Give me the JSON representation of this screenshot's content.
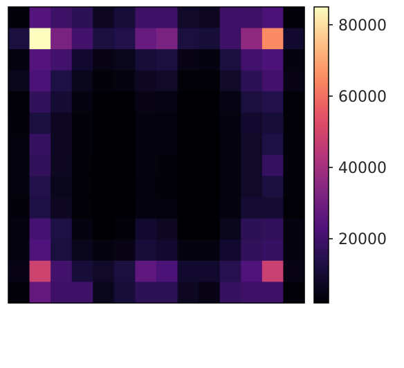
{
  "chart_data": {
    "type": "heatmap",
    "title": "",
    "xlabel": "",
    "ylabel": "",
    "colormap": "magma",
    "rows": 14,
    "cols": 14,
    "values": [
      [
        3000,
        24000,
        19000,
        16000,
        7000,
        11000,
        19000,
        19000,
        8000,
        7000,
        19000,
        19000,
        22000,
        3000
      ],
      [
        12000,
        85000,
        32000,
        20000,
        12000,
        14000,
        28000,
        32000,
        12000,
        11000,
        19000,
        36000,
        65000,
        9000
      ],
      [
        4000,
        24000,
        20000,
        9000,
        5000,
        6000,
        11000,
        12000,
        5000,
        4000,
        12000,
        20000,
        22000,
        4000
      ],
      [
        6000,
        22000,
        13000,
        6000,
        3000,
        4000,
        7000,
        8000,
        2500,
        2500,
        8000,
        16000,
        20000,
        5000
      ],
      [
        2500,
        17000,
        10000,
        4000,
        2000,
        2000,
        5000,
        4500,
        2000,
        2000,
        4500,
        12000,
        14000,
        2500
      ],
      [
        3000,
        12000,
        7000,
        3000,
        1500,
        1500,
        4000,
        3500,
        1500,
        1500,
        4000,
        9000,
        11000,
        2500
      ],
      [
        3500,
        18000,
        7000,
        3000,
        1500,
        2000,
        4000,
        3500,
        1500,
        1500,
        3500,
        8000,
        13000,
        3000
      ],
      [
        3500,
        17000,
        7000,
        2500,
        1500,
        1500,
        4000,
        3000,
        1500,
        1500,
        3500,
        8000,
        18000,
        3000
      ],
      [
        3500,
        14000,
        6000,
        2500,
        1500,
        1500,
        3500,
        3000,
        1500,
        1500,
        3500,
        8000,
        12000,
        3000
      ],
      [
        3000,
        13000,
        7000,
        2500,
        1500,
        1500,
        4000,
        3500,
        1500,
        1500,
        4000,
        10000,
        10000,
        2500
      ],
      [
        4000,
        21000,
        13000,
        4000,
        2000,
        3000,
        9000,
        7000,
        2000,
        2000,
        6000,
        16000,
        17000,
        4000
      ],
      [
        4000,
        23000,
        12000,
        6000,
        4000,
        5000,
        11000,
        9000,
        4000,
        4000,
        9000,
        17000,
        18000,
        4000
      ],
      [
        5000,
        49000,
        20000,
        11000,
        8000,
        12000,
        26000,
        22000,
        9000,
        9000,
        15000,
        23000,
        48000,
        5000
      ],
      [
        2500,
        27000,
        19000,
        19000,
        6000,
        11000,
        16000,
        16000,
        7000,
        5000,
        18000,
        19000,
        19000,
        2500
      ]
    ],
    "vmin": 2000,
    "vmax": 85000,
    "colorbar": {
      "ticks": [
        20000,
        40000,
        60000,
        80000
      ],
      "tick_labels": [
        "20000",
        "40000",
        "60000",
        "80000"
      ]
    },
    "x_ticks_shown": false,
    "y_ticks_shown": false,
    "grid": false
  }
}
